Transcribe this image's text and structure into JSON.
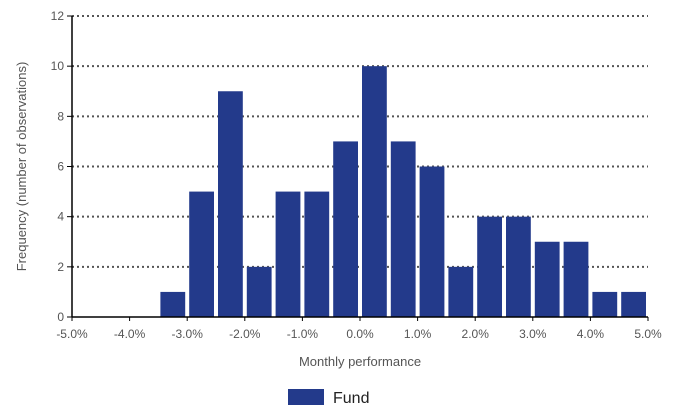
{
  "chart_data": {
    "type": "bar",
    "title": "",
    "xlabel": "Monthly performance",
    "ylabel": "Frequency (number of observations)",
    "x_bin_width": 0.5,
    "x_tick_values": [
      -5,
      -4,
      -3,
      -2,
      -1,
      0,
      1,
      2,
      3,
      4,
      5
    ],
    "x_tick_labels": [
      "-5.0%",
      "-4.0%",
      "-3.0%",
      "-2.0%",
      "-1.0%",
      "0.0%",
      "1.0%",
      "2.0%",
      "3.0%",
      "4.0%",
      "5.0%"
    ],
    "xlim": [
      -5,
      5
    ],
    "y_ticks": [
      0,
      2,
      4,
      6,
      8,
      10,
      12
    ],
    "ylim": [
      0,
      12
    ],
    "grid": "horizontal dotted",
    "legend_position": "bottom-center",
    "series": [
      {
        "name": "Fund",
        "color": "#233a8b",
        "bins": [
          {
            "x": -3.25,
            "value": 1
          },
          {
            "x": -2.75,
            "value": 5
          },
          {
            "x": -2.25,
            "value": 9
          },
          {
            "x": -1.75,
            "value": 2
          },
          {
            "x": -1.25,
            "value": 5
          },
          {
            "x": -0.75,
            "value": 5
          },
          {
            "x": -0.25,
            "value": 7
          },
          {
            "x": 0.25,
            "value": 10
          },
          {
            "x": 0.75,
            "value": 7
          },
          {
            "x": 1.25,
            "value": 6
          },
          {
            "x": 1.75,
            "value": 2
          },
          {
            "x": 2.25,
            "value": 4
          },
          {
            "x": 2.75,
            "value": 4
          },
          {
            "x": 3.25,
            "value": 3
          },
          {
            "x": 3.75,
            "value": 3
          },
          {
            "x": 4.25,
            "value": 1
          },
          {
            "x": 4.75,
            "value": 1
          }
        ]
      }
    ]
  }
}
